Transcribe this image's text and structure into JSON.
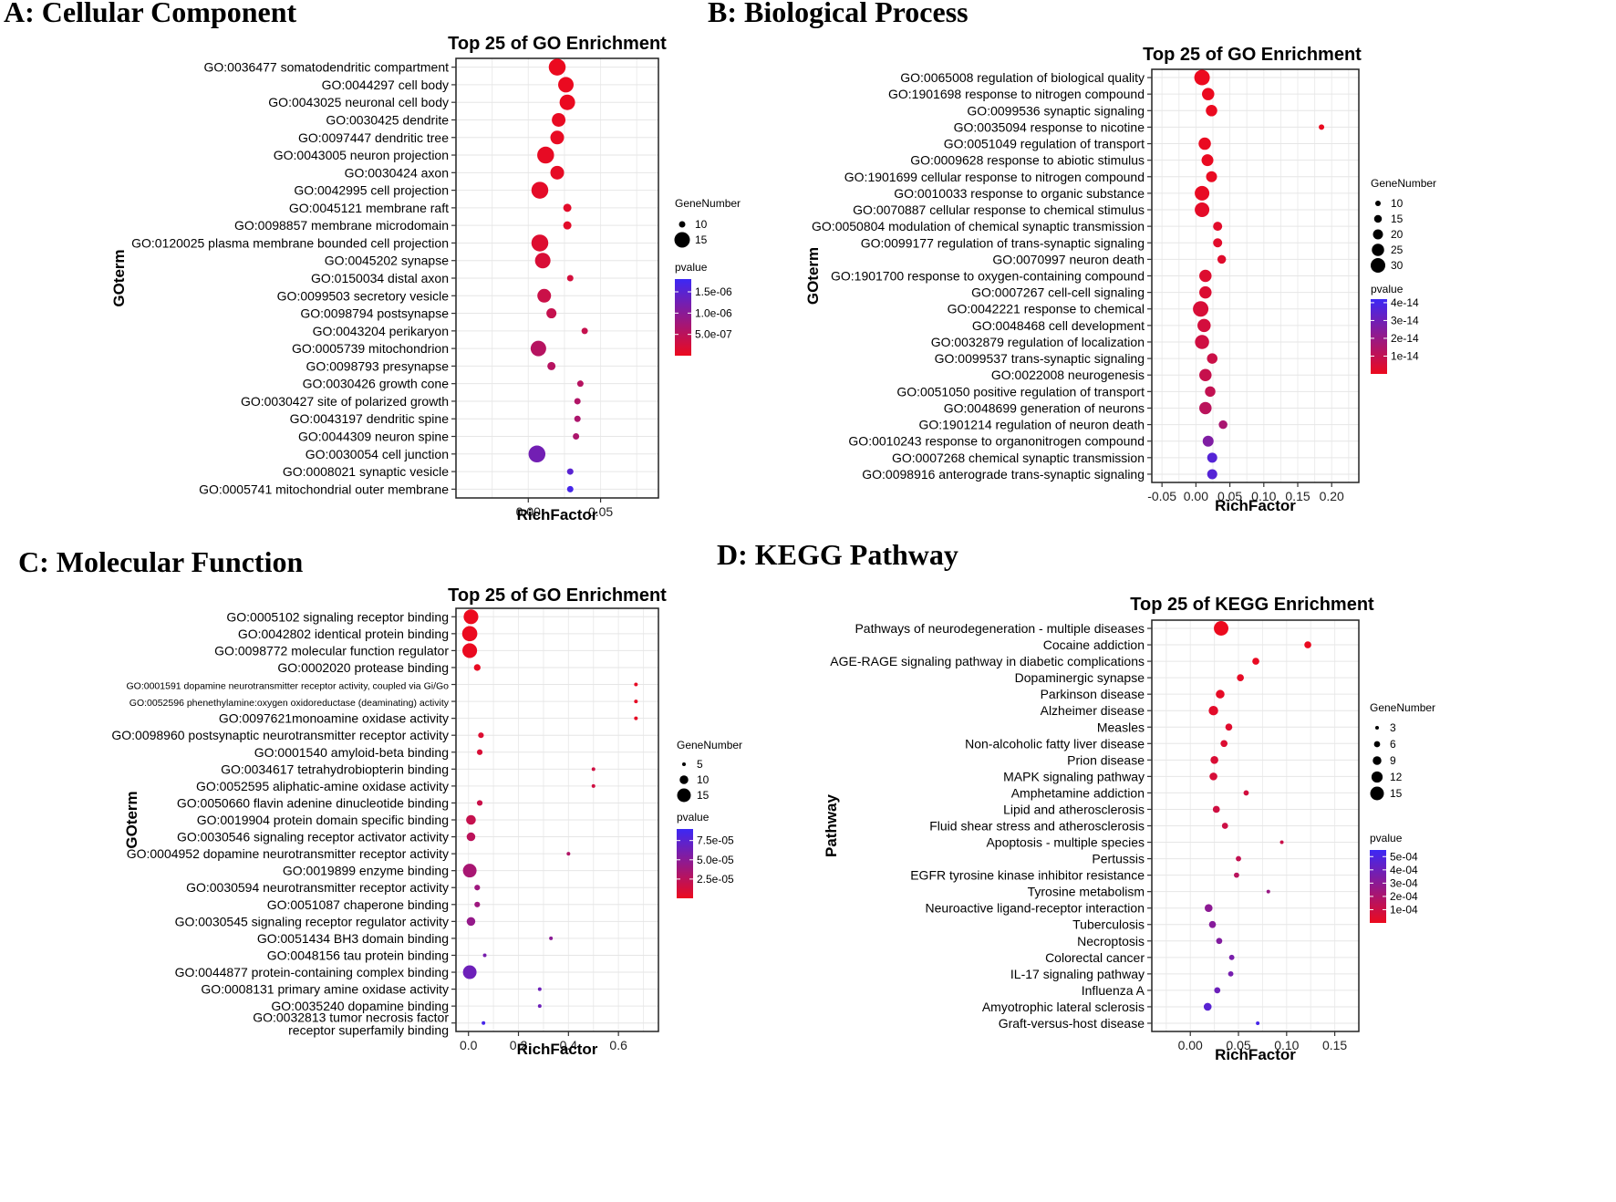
{
  "chart_data": [
    {
      "panel": "A: Cellular Component",
      "type": "scatter",
      "title": "Top 25 of GO Enrichment",
      "xlabel": "RichFactor",
      "ylabel": "GOterm",
      "xlim": [
        -0.05,
        0.09
      ],
      "xticks": [
        0.0,
        0.05
      ],
      "xtick_labels": [
        "0.00",
        "0.05"
      ],
      "size_legend": {
        "title": "GeneNumber",
        "values": [
          10,
          15
        ],
        "labels": [
          "10",
          "15"
        ]
      },
      "color_legend": {
        "title": "pvalue",
        "min": 0,
        "max": 1.8e-06,
        "ticks": [
          5e-07,
          1e-06,
          1.5e-06
        ],
        "labels": [
          "5.0e-07",
          "1.0e-06",
          "1.5e-06"
        ]
      },
      "points": [
        {
          "term": "GO:0036477 somatodendritic compartment",
          "x": 0.02,
          "genes": 17,
          "p": 1e-08
        },
        {
          "term": "GO:0044297 cell body",
          "x": 0.026,
          "genes": 15,
          "p": 2e-08
        },
        {
          "term": "GO:0043025 neuronal cell body",
          "x": 0.027,
          "genes": 15,
          "p": 2e-08
        },
        {
          "term": "GO:0030425 dendrite",
          "x": 0.021,
          "genes": 14,
          "p": 4e-08
        },
        {
          "term": "GO:0097447 dendritic tree",
          "x": 0.02,
          "genes": 14,
          "p": 4e-08
        },
        {
          "term": "GO:0043005 neuron projection",
          "x": 0.012,
          "genes": 16,
          "p": 5e-08
        },
        {
          "term": "GO:0030424 axon",
          "x": 0.02,
          "genes": 14,
          "p": 6e-08
        },
        {
          "term": "GO:0042995 cell projection",
          "x": 0.008,
          "genes": 17,
          "p": 8e-08
        },
        {
          "term": "GO:0045121 membrane raft",
          "x": 0.027,
          "genes": 11,
          "p": 1e-07
        },
        {
          "term": "GO:0098857 membrane microdomain",
          "x": 0.027,
          "genes": 11,
          "p": 1e-07
        },
        {
          "term": "GO:0120025 plasma membrane bounded cell projection",
          "x": 0.008,
          "genes": 16,
          "p": 1.5e-07
        },
        {
          "term": "GO:0045202 synapse",
          "x": 0.01,
          "genes": 15,
          "p": 2e-07
        },
        {
          "term": "GO:0150034 distal axon",
          "x": 0.029,
          "genes": 10,
          "p": 2.5e-07
        },
        {
          "term": "GO:0099503 secretory vesicle",
          "x": 0.011,
          "genes": 14,
          "p": 3.5e-07
        },
        {
          "term": "GO:0098794 postsynapse",
          "x": 0.016,
          "genes": 12,
          "p": 4e-07
        },
        {
          "term": "GO:0043204 perikaryon",
          "x": 0.039,
          "genes": 7,
          "p": 4e-07
        },
        {
          "term": "GO:0005739 mitochondrion",
          "x": 0.007,
          "genes": 15,
          "p": 5.5e-07
        },
        {
          "term": "GO:0098793 presynapse",
          "x": 0.016,
          "genes": 11,
          "p": 5.5e-07
        },
        {
          "term": "GO:0030426 growth cone",
          "x": 0.036,
          "genes": 7,
          "p": 5.5e-07
        },
        {
          "term": "GO:0030427 site of polarized growth",
          "x": 0.034,
          "genes": 7,
          "p": 6e-07
        },
        {
          "term": "GO:0043197 dendritic spine",
          "x": 0.034,
          "genes": 7,
          "p": 6.5e-07
        },
        {
          "term": "GO:0044309 neuron spine",
          "x": 0.033,
          "genes": 7,
          "p": 6.5e-07
        },
        {
          "term": "GO:0030054 cell junction",
          "x": 0.006,
          "genes": 16,
          "p": 1.25e-06
        },
        {
          "term": "GO:0008021 synaptic vesicle",
          "x": 0.029,
          "genes": 7,
          "p": 1.5e-06
        },
        {
          "term": "GO:0005741 mitochondrial outer membrane",
          "x": 0.029,
          "genes": 7,
          "p": 1.7e-06
        }
      ]
    },
    {
      "panel": "B: Biological Process",
      "type": "scatter",
      "title": "Top 25 of GO Enrichment",
      "xlabel": "RichFactor",
      "ylabel": "GOterm",
      "xlim": [
        -0.065,
        0.24
      ],
      "xticks": [
        -0.05,
        0.0,
        0.05,
        0.1,
        0.15,
        0.2
      ],
      "xtick_labels": [
        "-0.05",
        "0.00",
        "0.05",
        "0.10",
        "0.15",
        "0.20"
      ],
      "size_legend": {
        "title": "GeneNumber",
        "values": [
          10,
          15,
          20,
          25,
          30
        ],
        "labels": [
          "10",
          "15",
          "20",
          "25",
          "30"
        ]
      },
      "color_legend": {
        "title": "pvalue",
        "min": 0,
        "max": 4.2e-14,
        "ticks": [
          1e-14,
          2e-14,
          3e-14,
          4e-14
        ],
        "labels": [
          "1e-14",
          "2e-14",
          "3e-14",
          "4e-14"
        ]
      },
      "points": [
        {
          "term": "GO:0065008 regulation of biological quality",
          "x": 0.009,
          "genes": 32,
          "p": 1e-16
        },
        {
          "term": "GO:1901698 response to nitrogen compound",
          "x": 0.018,
          "genes": 25,
          "p": 2e-16
        },
        {
          "term": "GO:0099536 synaptic signaling",
          "x": 0.023,
          "genes": 23,
          "p": 3e-16
        },
        {
          "term": "GO:0035094 response to nicotine",
          "x": 0.185,
          "genes": 8,
          "p": 4e-16
        },
        {
          "term": "GO:0051049 regulation of transport",
          "x": 0.013,
          "genes": 25,
          "p": 5e-16
        },
        {
          "term": "GO:0009628 response to abiotic stimulus",
          "x": 0.017,
          "genes": 24,
          "p": 6e-16
        },
        {
          "term": "GO:1901699 cellular response to nitrogen compound",
          "x": 0.023,
          "genes": 22,
          "p": 7e-16
        },
        {
          "term": "GO:0010033 response to organic substance",
          "x": 0.009,
          "genes": 30,
          "p": 1e-15
        },
        {
          "term": "GO:0070887 cellular response to chemical stimulus",
          "x": 0.009,
          "genes": 30,
          "p": 2e-15
        },
        {
          "term": "GO:0050804 modulation of chemical synaptic transmission",
          "x": 0.032,
          "genes": 18,
          "p": 2.5e-15
        },
        {
          "term": "GO:0099177 regulation of trans-synaptic signaling",
          "x": 0.032,
          "genes": 18,
          "p": 2.5e-15
        },
        {
          "term": "GO:0070997 neuron death",
          "x": 0.038,
          "genes": 17,
          "p": 3e-15
        },
        {
          "term": "GO:1901700 response to oxygen-containing compound",
          "x": 0.014,
          "genes": 25,
          "p": 3.5e-15
        },
        {
          "term": "GO:0007267 cell-cell signaling",
          "x": 0.014,
          "genes": 25,
          "p": 4e-15
        },
        {
          "term": "GO:0042221 response to chemical",
          "x": 0.007,
          "genes": 32,
          "p": 5e-15
        },
        {
          "term": "GO:0048468 cell development",
          "x": 0.012,
          "genes": 27,
          "p": 6e-15
        },
        {
          "term": "GO:0032879 regulation of localization",
          "x": 0.009,
          "genes": 29,
          "p": 7e-15
        },
        {
          "term": "GO:0099537 trans-synaptic signaling",
          "x": 0.024,
          "genes": 21,
          "p": 8e-15
        },
        {
          "term": "GO:0022008 neurogenesis",
          "x": 0.014,
          "genes": 25,
          "p": 9e-15
        },
        {
          "term": "GO:0051050 positive regulation of transport",
          "x": 0.021,
          "genes": 21,
          "p": 1e-14
        },
        {
          "term": "GO:0048699 generation of neurons",
          "x": 0.014,
          "genes": 25,
          "p": 1.2e-14
        },
        {
          "term": "GO:1901214 regulation of neuron death",
          "x": 0.04,
          "genes": 17,
          "p": 1.6e-14
        },
        {
          "term": "GO:0010243 response to organonitrogen compound",
          "x": 0.018,
          "genes": 22,
          "p": 2.6e-14
        },
        {
          "term": "GO:0007268 chemical synaptic transmission",
          "x": 0.024,
          "genes": 20,
          "p": 3.6e-14
        },
        {
          "term": "GO:0098916 anterograde trans-synaptic signaling",
          "x": 0.024,
          "genes": 20,
          "p": 3.6e-14
        }
      ]
    },
    {
      "panel": "C: Molecular Function",
      "type": "scatter",
      "title": "Top 25 of GO Enrichment",
      "xlabel": "RichFactor",
      "ylabel": "GOterm",
      "xlim": [
        -0.05,
        0.76
      ],
      "xticks": [
        0.0,
        0.2,
        0.4,
        0.6
      ],
      "xtick_labels": [
        "0.0",
        "0.2",
        "0.4",
        "0.6"
      ],
      "size_legend": {
        "title": "GeneNumber",
        "values": [
          5,
          10,
          15
        ],
        "labels": [
          "5",
          "10",
          "15"
        ]
      },
      "color_legend": {
        "title": "pvalue",
        "min": 0,
        "max": 9e-05,
        "ticks": [
          2.5e-05,
          5e-05,
          7.5e-05
        ],
        "labels": [
          "2.5e-05",
          "5.0e-05",
          "7.5e-05"
        ]
      },
      "points": [
        {
          "term": "GO:0005102 signaling receptor binding",
          "x": 0.01,
          "genes": 16,
          "p": 1e-07
        },
        {
          "term": "GO:0042802 identical protein binding",
          "x": 0.005,
          "genes": 17,
          "p": 5e-07
        },
        {
          "term": "GO:0098772 molecular function regulator",
          "x": 0.005,
          "genes": 16,
          "p": 1e-06
        },
        {
          "term": "GO:0002020 protease binding",
          "x": 0.035,
          "genes": 8,
          "p": 2e-06
        },
        {
          "term": "GO:0001591 dopamine neurotransmitter receptor activity, coupled via Gi/Go",
          "x": 0.67,
          "genes": 2,
          "p": 3e-06
        },
        {
          "term": "GO:0052596 phenethylamine:oxygen oxidoreductase (deaminating) activity",
          "x": 0.67,
          "genes": 2,
          "p": 3e-06
        },
        {
          "term": "GO:0097621monoamine oxidase activity",
          "x": 0.67,
          "genes": 2,
          "p": 3e-06
        },
        {
          "term": "GO:0098960 postsynaptic neurotransmitter receptor activity",
          "x": 0.05,
          "genes": 7,
          "p": 8e-06
        },
        {
          "term": "GO:0001540 amyloid-beta binding",
          "x": 0.045,
          "genes": 7,
          "p": 1e-05
        },
        {
          "term": "GO:0034617 tetrahydrobiopterin binding",
          "x": 0.5,
          "genes": 2,
          "p": 1.5e-05
        },
        {
          "term": "GO:0052595 aliphatic-amine oxidase activity",
          "x": 0.5,
          "genes": 2,
          "p": 1.5e-05
        },
        {
          "term": "GO:0050660 flavin adenine dinucleotide binding",
          "x": 0.045,
          "genes": 7,
          "p": 1.8e-05
        },
        {
          "term": "GO:0019904 protein domain specific binding",
          "x": 0.01,
          "genes": 11,
          "p": 2e-05
        },
        {
          "term": "GO:0030546 signaling receptor activator activity",
          "x": 0.01,
          "genes": 10,
          "p": 2.5e-05
        },
        {
          "term": "GO:0004952 dopamine neurotransmitter receptor activity",
          "x": 0.4,
          "genes": 2,
          "p": 3e-05
        },
        {
          "term": "GO:0019899 enzyme binding",
          "x": 0.005,
          "genes": 15,
          "p": 3.5e-05
        },
        {
          "term": "GO:0030594 neurotransmitter receptor activity",
          "x": 0.035,
          "genes": 7,
          "p": 4e-05
        },
        {
          "term": "GO:0051087 chaperone binding",
          "x": 0.035,
          "genes": 7,
          "p": 4e-05
        },
        {
          "term": "GO:0030545 signaling receptor regulator activity",
          "x": 0.01,
          "genes": 10,
          "p": 4.5e-05
        },
        {
          "term": "GO:0051434 BH3 domain binding",
          "x": 0.33,
          "genes": 2,
          "p": 5e-05
        },
        {
          "term": "GO:0048156 tau protein binding",
          "x": 0.065,
          "genes": 5,
          "p": 6e-05
        },
        {
          "term": "GO:0044877 protein-containing complex binding",
          "x": 0.005,
          "genes": 15,
          "p": 6.5e-05
        },
        {
          "term": "GO:0008131 primary amine oxidase activity",
          "x": 0.285,
          "genes": 2,
          "p": 6.5e-05
        },
        {
          "term": "GO:0035240 dopamine binding",
          "x": 0.285,
          "genes": 2,
          "p": 6.5e-05
        },
        {
          "term": "GO:0032813 tumor necrosis factor receptor superfamily binding",
          "x": 0.06,
          "genes": 4,
          "p": 8.5e-05
        }
      ]
    },
    {
      "panel": "D: KEGG Pathway",
      "type": "scatter",
      "title": "Top 25 of KEGG Enrichment",
      "xlabel": "RichFactor",
      "ylabel": "Pathway",
      "xlim": [
        -0.04,
        0.175
      ],
      "xticks": [
        0.0,
        0.05,
        0.1,
        0.15
      ],
      "xtick_labels": [
        "0.00",
        "0.05",
        "0.10",
        "0.15"
      ],
      "size_legend": {
        "title": "GeneNumber",
        "values": [
          3,
          6,
          9,
          12,
          15
        ],
        "labels": [
          "3",
          "6",
          "9",
          "12",
          "15"
        ]
      },
      "color_legend": {
        "title": "pvalue",
        "min": 0,
        "max": 0.00055,
        "ticks": [
          0.0001,
          0.0002,
          0.0003,
          0.0004,
          0.0005
        ],
        "labels": [
          "1e-04",
          "2e-04",
          "3e-04",
          "4e-04",
          "5e-04"
        ]
      },
      "points": [
        {
          "term": "Pathways of neurodegeneration - multiple diseases",
          "x": 0.032,
          "genes": 16,
          "p": 1e-06
        },
        {
          "term": "Cocaine addiction",
          "x": 0.122,
          "genes": 7,
          "p": 5e-06
        },
        {
          "term": "AGE-RAGE signaling pathway in diabetic complications",
          "x": 0.068,
          "genes": 7,
          "p": 1e-05
        },
        {
          "term": "Dopaminergic synapse",
          "x": 0.052,
          "genes": 7,
          "p": 2e-05
        },
        {
          "term": "Parkinson disease",
          "x": 0.031,
          "genes": 9,
          "p": 2e-05
        },
        {
          "term": "Alzheimer disease",
          "x": 0.024,
          "genes": 10,
          "p": 3e-05
        },
        {
          "term": "Measles",
          "x": 0.04,
          "genes": 7,
          "p": 4e-05
        },
        {
          "term": "Non-alcoholic fatty liver disease",
          "x": 0.035,
          "genes": 7,
          "p": 5e-05
        },
        {
          "term": "Prion disease",
          "x": 0.025,
          "genes": 8,
          "p": 6e-05
        },
        {
          "term": "MAPK signaling pathway",
          "x": 0.024,
          "genes": 8,
          "p": 7e-05
        },
        {
          "term": "Amphetamine addiction",
          "x": 0.058,
          "genes": 5,
          "p": 8e-05
        },
        {
          "term": "Lipid and atherosclerosis",
          "x": 0.027,
          "genes": 7,
          "p": 9e-05
        },
        {
          "term": "Fluid shear stress and atherosclerosis",
          "x": 0.036,
          "genes": 6,
          "p": 0.0001
        },
        {
          "term": "Apoptosis - multiple species",
          "x": 0.095,
          "genes": 3,
          "p": 0.00011
        },
        {
          "term": "Pertussis",
          "x": 0.05,
          "genes": 5,
          "p": 0.00013
        },
        {
          "term": "EGFR tyrosine kinase inhibitor resistance",
          "x": 0.048,
          "genes": 5,
          "p": 0.00016
        },
        {
          "term": "Tyrosine metabolism",
          "x": 0.081,
          "genes": 3,
          "p": 0.00026
        },
        {
          "term": "Neuroactive ligand-receptor interaction",
          "x": 0.019,
          "genes": 8,
          "p": 0.0003
        },
        {
          "term": "Tuberculosis",
          "x": 0.023,
          "genes": 7,
          "p": 0.00032
        },
        {
          "term": "Necroptosis",
          "x": 0.03,
          "genes": 6,
          "p": 0.00033
        },
        {
          "term": "Colorectal cancer",
          "x": 0.043,
          "genes": 5,
          "p": 0.00036
        },
        {
          "term": "IL-17 signaling pathway",
          "x": 0.042,
          "genes": 5,
          "p": 0.00037
        },
        {
          "term": "Influenza A",
          "x": 0.028,
          "genes": 6,
          "p": 0.0004
        },
        {
          "term": "Amyotrophic lateral sclerosis",
          "x": 0.018,
          "genes": 8,
          "p": 0.00046
        },
        {
          "term": "Graft-versus-host disease",
          "x": 0.07,
          "genes": 3,
          "p": 0.00052
        }
      ]
    }
  ]
}
